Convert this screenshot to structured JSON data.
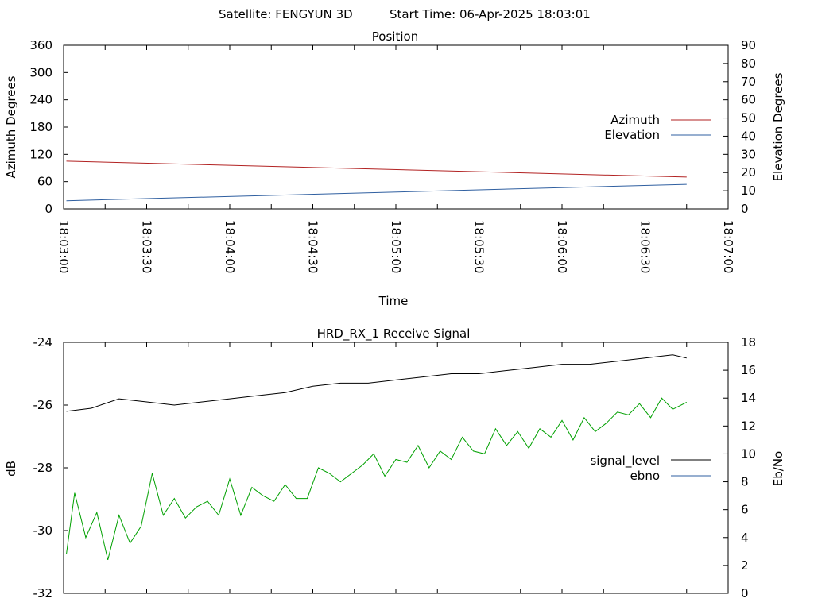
{
  "header": {
    "satellite_text": "Satellite: FENGYUN 3D",
    "start_time_text": "Start Time: 06-Apr-2025 18:03:01"
  },
  "chart_data": [
    {
      "type": "line",
      "title": "Position",
      "xlabel": "Time",
      "ylabel": "Azimuth Degrees",
      "y2label": "Elevation Degrees",
      "xlim": [
        "18:03:00",
        "18:07:00"
      ],
      "ylim": [
        0,
        360
      ],
      "y2lim": [
        0,
        90
      ],
      "x_ticks": [
        "18:03:00",
        "18:03:30",
        "18:04:00",
        "18:04:30",
        "18:05:00",
        "18:05:30",
        "18:06:00",
        "18:06:30",
        "18:07:00"
      ],
      "y_ticks": [
        "0",
        "60",
        "120",
        "180",
        "240",
        "300",
        "360"
      ],
      "y2_ticks": [
        "0",
        "10",
        "20",
        "30",
        "40",
        "50",
        "60",
        "70",
        "80",
        "90"
      ],
      "grid": false,
      "legend_position": "right",
      "series": [
        {
          "name": "Azimuth",
          "color": "#b22222",
          "axis": "y1",
          "x": [
            "18:03:01",
            "18:06:45"
          ],
          "y": [
            105,
            70
          ]
        },
        {
          "name": "Elevation",
          "color": "#2f5fa0",
          "axis": "y2",
          "x": [
            "18:03:01",
            "18:06:45"
          ],
          "y": [
            4.5,
            13.5
          ]
        }
      ]
    },
    {
      "type": "line",
      "title": "HRD_RX_1 Receive Signal",
      "ylabel": "dB",
      "y2label": "Eb/No",
      "xlim": [
        "18:03:00",
        "18:07:00"
      ],
      "ylim": [
        -32,
        -24
      ],
      "y2lim": [
        0,
        18
      ],
      "y_ticks": [
        "-32",
        "-30",
        "-28",
        "-26",
        "-24"
      ],
      "y2_ticks": [
        "0",
        "2",
        "4",
        "6",
        "8",
        "10",
        "12",
        "14",
        "16",
        "18"
      ],
      "grid": false,
      "legend_position": "right",
      "series": [
        {
          "name": "signal_level",
          "color": "#000000",
          "axis": "y1",
          "x": [
            "18:03:01",
            "18:03:10",
            "18:03:20",
            "18:03:30",
            "18:03:40",
            "18:03:50",
            "18:04:00",
            "18:04:10",
            "18:04:20",
            "18:04:30",
            "18:04:40",
            "18:04:50",
            "18:05:00",
            "18:05:10",
            "18:05:20",
            "18:05:30",
            "18:05:40",
            "18:05:50",
            "18:06:00",
            "18:06:10",
            "18:06:20",
            "18:06:30",
            "18:06:40",
            "18:06:45"
          ],
          "y": [
            -26.2,
            -26.1,
            -25.8,
            -25.9,
            -26.0,
            -25.9,
            -25.8,
            -25.7,
            -25.6,
            -25.4,
            -25.3,
            -25.3,
            -25.2,
            -25.1,
            -25.0,
            -25.0,
            -24.9,
            -24.8,
            -24.7,
            -24.7,
            -24.6,
            -24.5,
            -24.4,
            -24.5
          ]
        },
        {
          "name": "ebno",
          "color": "#00a000",
          "axis": "y2",
          "x": [
            "18:03:01",
            "18:03:04",
            "18:03:08",
            "18:03:12",
            "18:03:16",
            "18:03:20",
            "18:03:24",
            "18:03:28",
            "18:03:32",
            "18:03:36",
            "18:03:40",
            "18:03:44",
            "18:03:48",
            "18:03:52",
            "18:03:56",
            "18:04:00",
            "18:04:04",
            "18:04:08",
            "18:04:12",
            "18:04:16",
            "18:04:20",
            "18:04:24",
            "18:04:28",
            "18:04:32",
            "18:04:36",
            "18:04:40",
            "18:04:44",
            "18:04:48",
            "18:04:52",
            "18:04:56",
            "18:05:00",
            "18:05:04",
            "18:05:08",
            "18:05:12",
            "18:05:16",
            "18:05:20",
            "18:05:24",
            "18:05:28",
            "18:05:32",
            "18:05:36",
            "18:05:40",
            "18:05:44",
            "18:05:48",
            "18:05:52",
            "18:05:56",
            "18:06:00",
            "18:06:04",
            "18:06:08",
            "18:06:12",
            "18:06:16",
            "18:06:20",
            "18:06:24",
            "18:06:28",
            "18:06:32",
            "18:06:36",
            "18:06:40",
            "18:06:45"
          ],
          "y": [
            2.8,
            7.2,
            4.0,
            5.8,
            2.4,
            5.6,
            3.6,
            4.8,
            8.6,
            5.6,
            6.8,
            5.4,
            6.2,
            6.6,
            5.6,
            8.2,
            5.6,
            7.6,
            7.0,
            6.6,
            7.8,
            6.8,
            6.8,
            9.0,
            8.6,
            8.0,
            8.6,
            9.2,
            10.0,
            8.4,
            9.6,
            9.4,
            10.6,
            9.0,
            10.2,
            9.6,
            11.2,
            10.2,
            10.0,
            11.8,
            10.6,
            11.6,
            10.4,
            11.8,
            11.2,
            12.4,
            11.0,
            12.6,
            11.6,
            12.2,
            13.0,
            12.8,
            13.6,
            12.6,
            14.0,
            13.2,
            13.7
          ]
        }
      ]
    }
  ]
}
